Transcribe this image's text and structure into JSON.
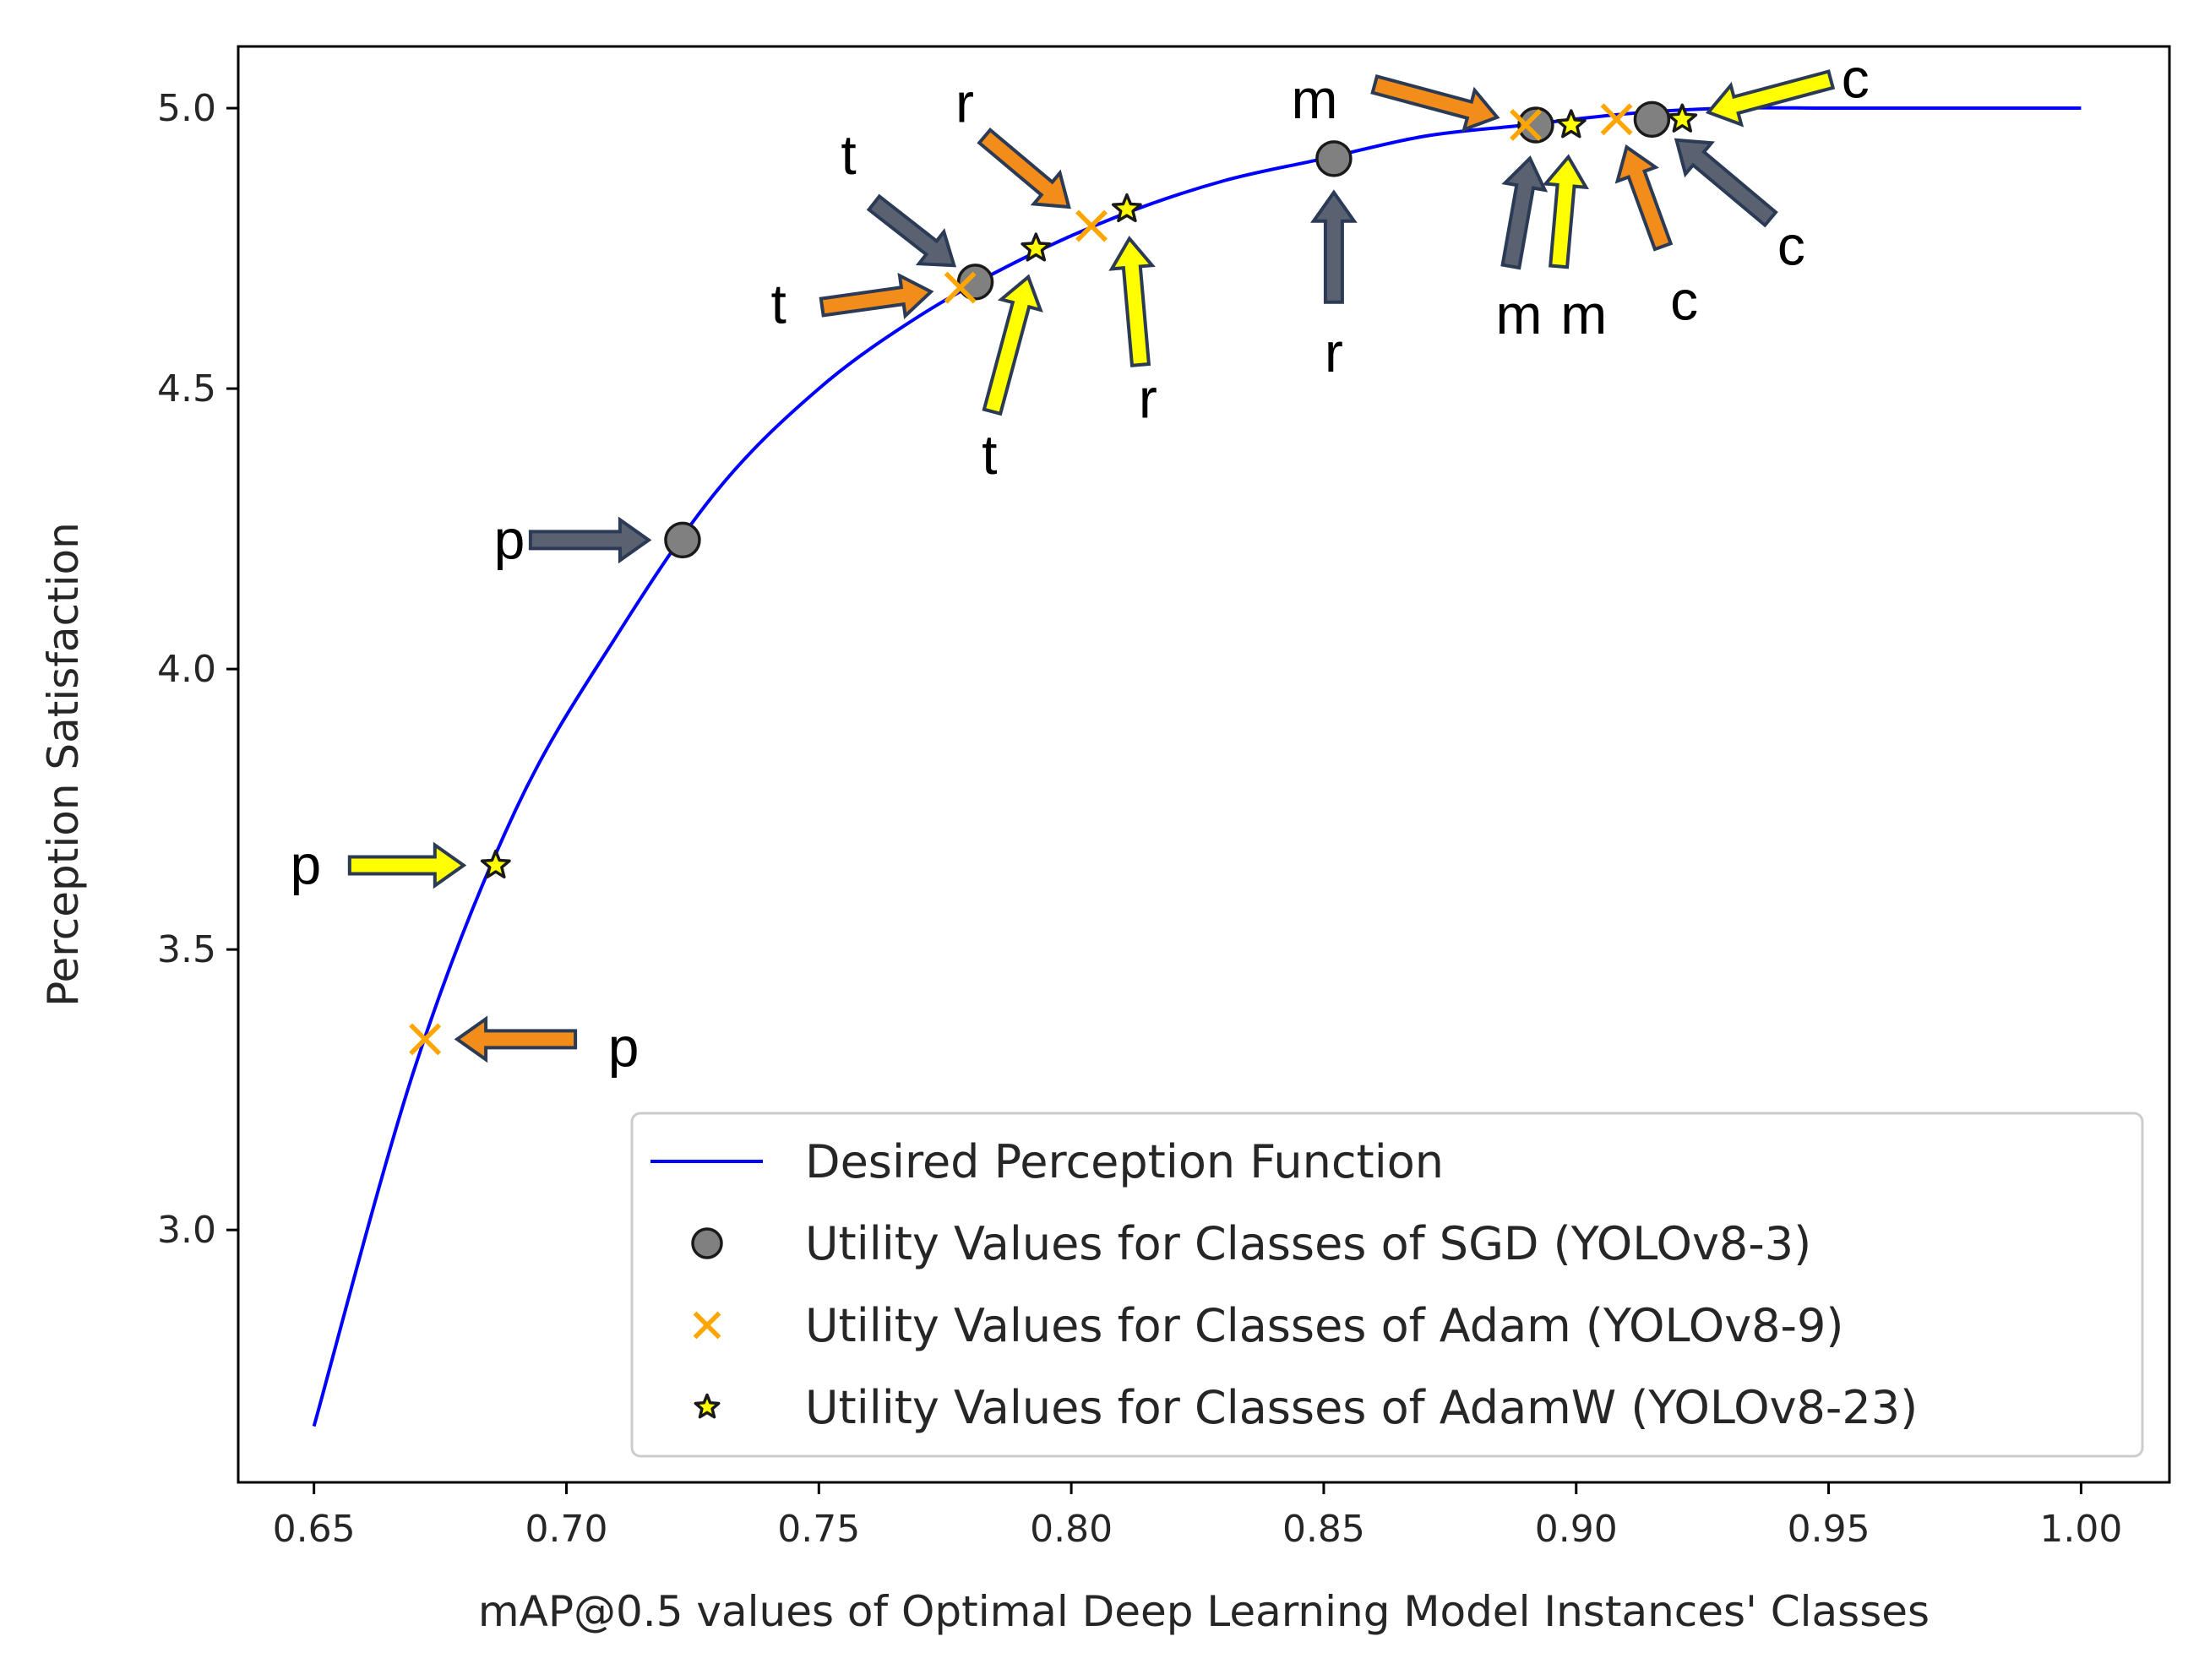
{
  "chart_data": {
    "type": "scatter",
    "title": "",
    "xlabel": "mAP@0.5 values of Optimal Deep Learning Model Instances' Classes",
    "ylabel": "Perception Satisfaction",
    "xlim": [
      0.635,
      1.0175
    ],
    "ylim": [
      2.55,
      5.11
    ],
    "xticks": [
      0.65,
      0.7,
      0.75,
      0.8,
      0.85,
      0.9,
      0.95,
      1.0
    ],
    "xtick_labels": [
      "0.65",
      "0.70",
      "0.75",
      "0.80",
      "0.85",
      "0.90",
      "0.95",
      "1.00"
    ],
    "yticks": [
      3.0,
      3.5,
      4.0,
      4.5,
      5.0
    ],
    "ytick_labels": [
      "3.0",
      "3.5",
      "4.0",
      "4.5",
      "5.0"
    ],
    "grid": false,
    "legend_position": "lower-right",
    "curve": {
      "name": "Desired Perception Function",
      "color": "#0000ff",
      "x": [
        0.65,
        0.67,
        0.69,
        0.71,
        0.73,
        0.75,
        0.77,
        0.79,
        0.81,
        0.83,
        0.85,
        0.87,
        0.89,
        0.91,
        0.93,
        0.95,
        0.97,
        1.0
      ],
      "y": [
        2.65,
        3.29,
        3.75,
        4.06,
        4.32,
        4.5,
        4.63,
        4.73,
        4.81,
        4.87,
        4.91,
        4.95,
        4.97,
        4.99,
        5.0,
        5.0,
        5.0,
        5.0
      ]
    },
    "series": [
      {
        "name": "Utility Values for Classes of SGD (YOLOv8-3)",
        "marker": "circle",
        "color": "#808080",
        "points": [
          {
            "label": "p",
            "x": 0.723,
            "y": 4.23
          },
          {
            "label": "t",
            "x": 0.781,
            "y": 4.69
          },
          {
            "label": "r",
            "x": 0.852,
            "y": 4.91
          },
          {
            "label": "m",
            "x": 0.892,
            "y": 4.97
          },
          {
            "label": "c",
            "x": 0.915,
            "y": 4.98
          }
        ]
      },
      {
        "name": "Utility Values for Classes of Adam (YOLOv8-9)",
        "marker": "x",
        "color": "#ffa500",
        "points": [
          {
            "label": "p",
            "x": 0.672,
            "y": 3.34
          },
          {
            "label": "t",
            "x": 0.778,
            "y": 4.68
          },
          {
            "label": "r",
            "x": 0.804,
            "y": 4.79
          },
          {
            "label": "m",
            "x": 0.89,
            "y": 4.97
          },
          {
            "label": "c",
            "x": 0.908,
            "y": 4.98
          }
        ]
      },
      {
        "name": "Utility Values for Classes of AdamW (YOLOv8-23)",
        "marker": "star",
        "color": "#ffff00",
        "points": [
          {
            "label": "p",
            "x": 0.686,
            "y": 3.65
          },
          {
            "label": "t",
            "x": 0.793,
            "y": 4.75
          },
          {
            "label": "r",
            "x": 0.811,
            "y": 4.82
          },
          {
            "label": "m",
            "x": 0.899,
            "y": 4.97
          },
          {
            "label": "c",
            "x": 0.921,
            "y": 4.98
          }
        ]
      }
    ],
    "annotations": [
      {
        "text": "p",
        "series": 0,
        "point": 0,
        "arrow_color": "#5a6272"
      },
      {
        "text": "t",
        "series": 0,
        "point": 1,
        "arrow_color": "#5a6272"
      },
      {
        "text": "r",
        "series": 0,
        "point": 2,
        "arrow_color": "#5a6272"
      },
      {
        "text": "m",
        "series": 0,
        "point": 3,
        "arrow_color": "#5a6272"
      },
      {
        "text": "c",
        "series": 0,
        "point": 4,
        "arrow_color": "#5a6272"
      },
      {
        "text": "p",
        "series": 1,
        "point": 0,
        "arrow_color": "#f28c1a"
      },
      {
        "text": "t",
        "series": 1,
        "point": 1,
        "arrow_color": "#f28c1a"
      },
      {
        "text": "r",
        "series": 1,
        "point": 2,
        "arrow_color": "#f28c1a"
      },
      {
        "text": "m",
        "series": 1,
        "point": 3,
        "arrow_color": "#f28c1a"
      },
      {
        "text": "c",
        "series": 1,
        "point": 4,
        "arrow_color": "#f28c1a"
      },
      {
        "text": "p",
        "series": 2,
        "point": 0,
        "arrow_color": "#ffff00"
      },
      {
        "text": "t",
        "series": 2,
        "point": 1,
        "arrow_color": "#ffff00"
      },
      {
        "text": "r",
        "series": 2,
        "point": 2,
        "arrow_color": "#ffff00"
      },
      {
        "text": "m",
        "series": 2,
        "point": 3,
        "arrow_color": "#ffff00"
      },
      {
        "text": "c",
        "series": 2,
        "point": 4,
        "arrow_color": "#ffff00"
      }
    ]
  }
}
